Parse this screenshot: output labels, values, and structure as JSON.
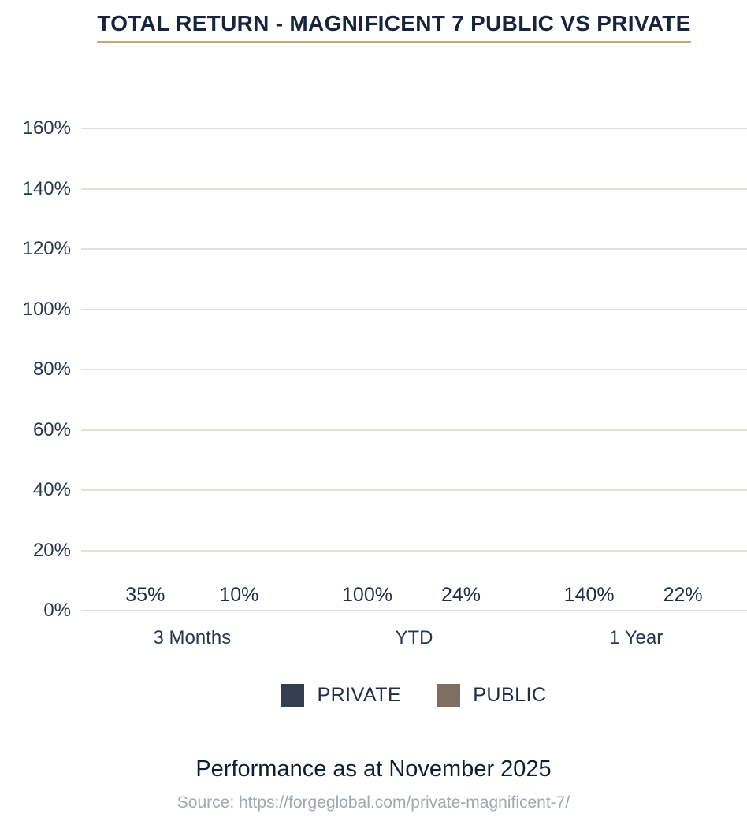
{
  "title": "TOTAL RETURN - MAGNIFICENT 7 PUBLIC VS PRIVATE",
  "caption": "Performance as at November 2025",
  "source": "Source: https://forgeglobal.com/private-magnificent-7/",
  "colors": {
    "private_bar": "#33404f",
    "public_bar": "#7e6f60",
    "title_underline": "#c9a87a",
    "gridline": "#e4e0da",
    "axis_text": "#273750",
    "caption_text": "#0f1f33",
    "source_text": "#9fa8b3"
  },
  "chart_data": {
    "type": "bar",
    "categories": [
      "3 Months",
      "YTD",
      "1 Year"
    ],
    "series": [
      {
        "name": "PRIVATE",
        "values": [
          35,
          100,
          140
        ],
        "color": "#33404f"
      },
      {
        "name": "PUBLIC",
        "values": [
          10,
          24,
          22
        ],
        "color": "#7e6f60"
      }
    ],
    "value_label_format": "{v}%",
    "ylim": [
      0,
      160
    ],
    "yticks": [
      0,
      20,
      40,
      60,
      80,
      100,
      120,
      140,
      160
    ],
    "ytick_format": "{v}%",
    "grid": true,
    "legend_position": "bottom"
  }
}
